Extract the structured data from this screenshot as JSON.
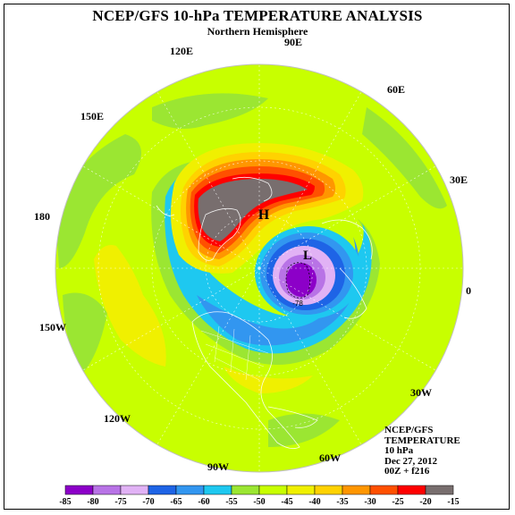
{
  "title": "NCEP/GFS 10-hPa TEMPERATURE ANALYSIS",
  "subtitle": "Northern Hemisphere",
  "longitude_labels": {
    "lon_90e": "90E",
    "lon_120e": "120E",
    "lon_60e": "60E",
    "lon_150e": "150E",
    "lon_30e": "30E",
    "lon_180": "180",
    "lon_0": "0",
    "lon_150w": "150W",
    "lon_30w": "30W",
    "lon_120w": "120W",
    "lon_90w": "90W",
    "lon_60w": "60W"
  },
  "map_markers": {
    "high": "H",
    "low": "L",
    "low_value": "-78"
  },
  "info": {
    "model": "NCEP/GFS",
    "variable": "TEMPERATURE",
    "level": "10 hPa",
    "date": "Dec 27, 2012",
    "cycle": "00Z + f216"
  },
  "colorbar": {
    "tick_labels": [
      "-85",
      "-80",
      "-75",
      "-70",
      "-65",
      "-60",
      "-55",
      "-50",
      "-45",
      "-40",
      "-35",
      "-30",
      "-25",
      "-20",
      "-15"
    ],
    "colors": [
      "#8c00c8",
      "#b873e6",
      "#e1b2f5",
      "#1e64e6",
      "#3296f0",
      "#1ec8f0",
      "#9be632",
      "#c8ff00",
      "#f0f000",
      "#ffd200",
      "#ff9600",
      "#ff5000",
      "#ff0000",
      "#786e6e"
    ]
  }
}
